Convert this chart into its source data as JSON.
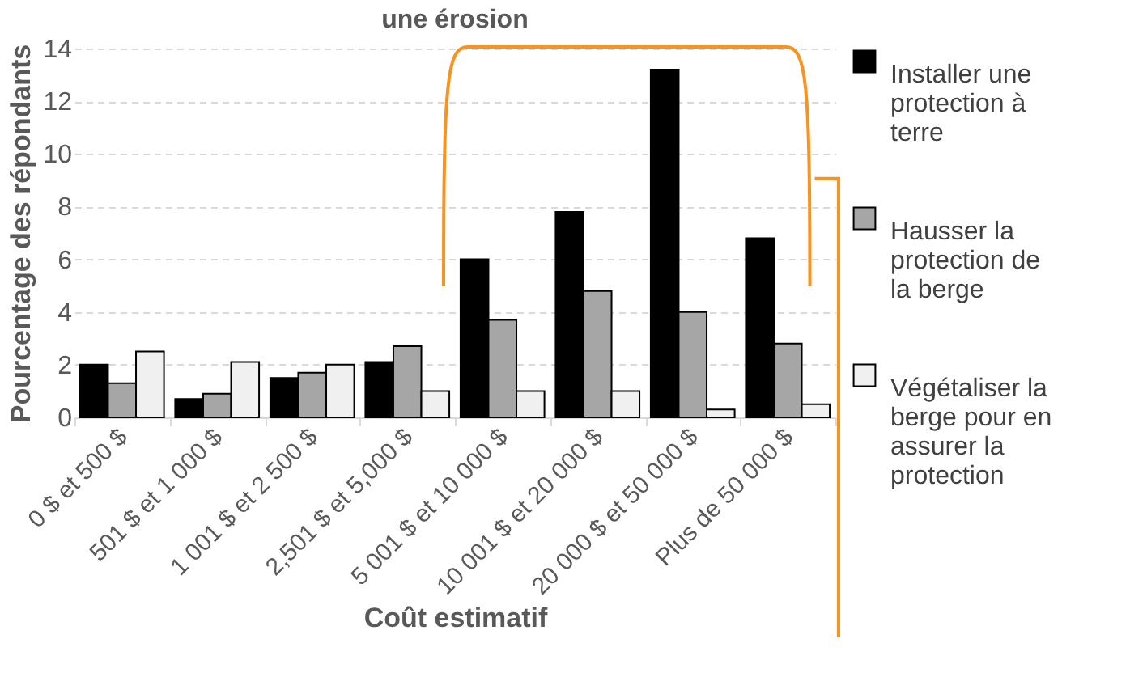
{
  "chart_data": {
    "type": "bar",
    "title": "une érosion",
    "xlabel": "Coût estimatif",
    "ylabel": "Pourcentage des répondants",
    "categories": [
      "0 $ et 500 $",
      "501 $ et 1 000 $",
      "1 001 $ et 2 500 $",
      "2,501 $ et 5,000 $",
      "5 001 $ et 10 000 $",
      "10 001 $ et 20 000 $",
      "20 000 $ et 50 000 $",
      "Plus de 50 000 $"
    ],
    "series": [
      {
        "name": "Installer une protection à terre",
        "color": "#000000",
        "values": [
          2.0,
          0.7,
          1.5,
          2.1,
          6.0,
          7.8,
          13.2,
          6.8
        ]
      },
      {
        "name": "Hausser la protection de la berge",
        "color": "#a6a6a6",
        "values": [
          1.3,
          0.9,
          1.7,
          2.7,
          3.7,
          4.8,
          4.0,
          2.8
        ]
      },
      {
        "name": "Végétaliser la berge pour en assurer la protection",
        "color": "#f0f0f0",
        "values": [
          2.5,
          2.1,
          2.0,
          1.0,
          1.0,
          1.0,
          0.3,
          0.5
        ]
      }
    ],
    "ylim": [
      0,
      14
    ],
    "yticks": [
      0,
      2,
      4,
      6,
      8,
      10,
      12,
      14
    ],
    "grid": "y",
    "legend": "right"
  }
}
